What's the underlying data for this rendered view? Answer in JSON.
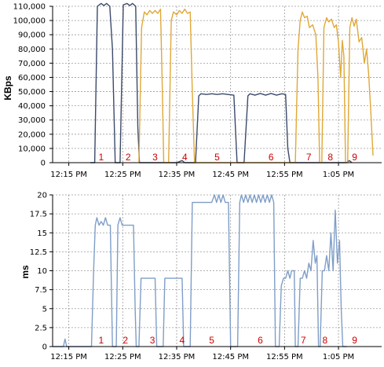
{
  "chart_data": [
    {
      "type": "line",
      "title": "",
      "xlabel": "",
      "ylabel": "KBps",
      "x_unit": "minutes after 12:00 PM",
      "xlim": [
        12,
        73
      ],
      "ylim": [
        0,
        110000
      ],
      "xticks": [
        "12:15 PM",
        "12:25 PM",
        "12:35 PM",
        "12:45 PM",
        "12:55 PM",
        "1:05 PM"
      ],
      "yticks": [
        "0",
        "10,000",
        "20,000",
        "30,000",
        "40,000",
        "50,000",
        "60,000",
        "70,000",
        "80,000",
        "90,000",
        "100,000",
        "110,000"
      ],
      "grid": true,
      "colors": {
        "grid": "#9a9a9a",
        "axis": "#000000",
        "label": "#cc0000"
      },
      "segment_labels": [
        {
          "text": "1",
          "x": 21.0
        },
        {
          "text": "2",
          "x": 26.0
        },
        {
          "text": "3",
          "x": 31.0
        },
        {
          "text": "4",
          "x": 36.5
        },
        {
          "text": "5",
          "x": 42.5
        },
        {
          "text": "6",
          "x": 52.5
        },
        {
          "text": "7",
          "x": 59.5
        },
        {
          "text": "8",
          "x": 63.5
        },
        {
          "text": "9",
          "x": 68.0
        }
      ],
      "series": [
        {
          "color": "#3b4a6b",
          "points": [
            [
              19.0,
              0
            ],
            [
              19.8,
              0
            ],
            [
              20.3,
              110000
            ],
            [
              21.0,
              112000
            ],
            [
              21.5,
              110500
            ],
            [
              22.0,
              112000
            ],
            [
              22.6,
              110000
            ],
            [
              23.1,
              80000
            ],
            [
              23.6,
              0
            ],
            [
              24.5,
              0
            ],
            [
              25.1,
              111000
            ],
            [
              25.8,
              112000
            ],
            [
              26.3,
              110500
            ],
            [
              26.8,
              112000
            ],
            [
              27.4,
              110000
            ],
            [
              27.8,
              25000
            ],
            [
              28.1,
              0
            ],
            [
              29.0,
              0
            ],
            [
              35.0,
              0
            ],
            [
              36.0,
              1500
            ],
            [
              36.5,
              0
            ],
            [
              38.5,
              0
            ],
            [
              39.1,
              47000
            ],
            [
              39.5,
              48500
            ],
            [
              40.5,
              48000
            ],
            [
              41.5,
              48500
            ],
            [
              42.5,
              48000
            ],
            [
              43.5,
              48500
            ],
            [
              44.5,
              48000
            ],
            [
              45.6,
              47500
            ],
            [
              46.2,
              0
            ],
            [
              47.5,
              0
            ],
            [
              48.2,
              47000
            ],
            [
              48.6,
              48500
            ],
            [
              49.5,
              47500
            ],
            [
              50.5,
              48700
            ],
            [
              51.5,
              47500
            ],
            [
              52.5,
              48700
            ],
            [
              53.5,
              47500
            ],
            [
              54.5,
              48500
            ],
            [
              55.2,
              48000
            ],
            [
              55.6,
              10000
            ],
            [
              56.0,
              0
            ],
            [
              57.5,
              0
            ],
            [
              66.5,
              0
            ],
            [
              67.0,
              1500
            ],
            [
              67.5,
              0
            ]
          ]
        },
        {
          "color": "#e0a838",
          "points": [
            [
              28.0,
              0
            ],
            [
              28.5,
              95000
            ],
            [
              29.0,
              106000
            ],
            [
              29.5,
              104000
            ],
            [
              30.0,
              107000
            ],
            [
              30.5,
              105000
            ],
            [
              31.0,
              107000
            ],
            [
              31.5,
              105000
            ],
            [
              32.0,
              108000
            ],
            [
              32.3,
              60000
            ],
            [
              32.6,
              0
            ],
            [
              33.5,
              0
            ],
            [
              34.0,
              100000
            ],
            [
              34.4,
              106000
            ],
            [
              35.0,
              104000
            ],
            [
              35.5,
              107000
            ],
            [
              36.0,
              105000
            ],
            [
              36.5,
              108000
            ],
            [
              37.0,
              105000
            ],
            [
              37.5,
              106000
            ],
            [
              37.9,
              50000
            ],
            [
              38.3,
              0
            ],
            [
              57.0,
              0
            ],
            [
              57.5,
              80000
            ],
            [
              57.9,
              100000
            ],
            [
              58.3,
              106000
            ],
            [
              58.7,
              102000
            ],
            [
              59.2,
              103000
            ],
            [
              59.6,
              95000
            ],
            [
              60.2,
              97000
            ],
            [
              60.8,
              90000
            ],
            [
              61.2,
              60000
            ],
            [
              61.5,
              0
            ],
            [
              61.9,
              0
            ],
            [
              62.3,
              95000
            ],
            [
              62.8,
              102000
            ],
            [
              63.2,
              99000
            ],
            [
              63.7,
              101000
            ],
            [
              64.2,
              95000
            ],
            [
              64.6,
              97000
            ],
            [
              65.0,
              85000
            ],
            [
              65.4,
              60000
            ],
            [
              65.7,
              86000
            ],
            [
              66.0,
              75000
            ],
            [
              66.3,
              0
            ],
            [
              66.7,
              0
            ],
            [
              67.1,
              95000
            ],
            [
              67.5,
              102000
            ],
            [
              67.9,
              96000
            ],
            [
              68.3,
              101000
            ],
            [
              68.8,
              85000
            ],
            [
              69.3,
              88000
            ],
            [
              69.8,
              70000
            ],
            [
              70.2,
              80000
            ],
            [
              70.6,
              62000
            ],
            [
              71.0,
              35000
            ],
            [
              71.4,
              5000
            ]
          ]
        }
      ]
    },
    {
      "type": "line",
      "title": "",
      "xlabel": "",
      "ylabel": "ms",
      "x_unit": "minutes after 12:00 PM",
      "xlim": [
        12,
        73
      ],
      "ylim": [
        0,
        20
      ],
      "xticks": [
        "12:15 PM",
        "12:25 PM",
        "12:35 PM",
        "12:45 PM",
        "12:55 PM",
        "1:05 PM"
      ],
      "yticks": [
        "0",
        "2.5",
        "5",
        "7.5",
        "10",
        "12.5",
        "15",
        "17.5",
        "20"
      ],
      "grid": true,
      "colors": {
        "grid": "#9a9a9a",
        "axis": "#000000",
        "label": "#cc0000"
      },
      "segment_labels": [
        {
          "text": "1",
          "x": 21.0
        },
        {
          "text": "2",
          "x": 25.5
        },
        {
          "text": "3",
          "x": 30.5
        },
        {
          "text": "4",
          "x": 36.0
        },
        {
          "text": "5",
          "x": 41.5
        },
        {
          "text": "6",
          "x": 50.5
        },
        {
          "text": "7",
          "x": 58.5
        },
        {
          "text": "8",
          "x": 62.5
        },
        {
          "text": "9",
          "x": 68.0
        }
      ],
      "series": [
        {
          "color": "#7f9ec8",
          "points": [
            [
              12.0,
              0
            ],
            [
              14.0,
              0
            ],
            [
              14.3,
              1.0
            ],
            [
              14.6,
              0
            ],
            [
              19.2,
              0
            ],
            [
              19.6,
              10
            ],
            [
              19.9,
              16
            ],
            [
              20.2,
              17
            ],
            [
              20.6,
              16
            ],
            [
              21.0,
              16.5
            ],
            [
              21.4,
              16
            ],
            [
              21.8,
              17
            ],
            [
              22.2,
              16
            ],
            [
              22.7,
              16
            ],
            [
              23.1,
              0
            ],
            [
              23.8,
              0
            ],
            [
              24.1,
              16
            ],
            [
              24.5,
              17
            ],
            [
              24.9,
              16
            ],
            [
              25.5,
              16
            ],
            [
              26.0,
              16
            ],
            [
              26.5,
              16
            ],
            [
              27.0,
              16
            ],
            [
              27.3,
              5
            ],
            [
              27.5,
              0
            ],
            [
              28.0,
              0
            ],
            [
              28.4,
              9
            ],
            [
              30.5,
              9
            ],
            [
              31.0,
              9
            ],
            [
              31.3,
              0
            ],
            [
              32.5,
              0
            ],
            [
              32.8,
              9
            ],
            [
              35.5,
              9
            ],
            [
              36.0,
              9
            ],
            [
              36.3,
              0
            ],
            [
              37.0,
              0
            ],
            [
              37.5,
              0
            ],
            [
              37.9,
              19
            ],
            [
              41.5,
              19
            ],
            [
              42.0,
              20
            ],
            [
              42.4,
              19
            ],
            [
              42.8,
              20
            ],
            [
              43.2,
              19
            ],
            [
              43.6,
              20
            ],
            [
              44.0,
              19
            ],
            [
              44.6,
              19
            ],
            [
              45.0,
              0
            ],
            [
              46.3,
              0
            ],
            [
              46.7,
              19
            ],
            [
              47.0,
              20
            ],
            [
              47.4,
              19
            ],
            [
              47.8,
              20
            ],
            [
              48.2,
              19
            ],
            [
              48.6,
              20
            ],
            [
              49.0,
              19
            ],
            [
              49.4,
              20
            ],
            [
              49.8,
              19
            ],
            [
              50.2,
              20
            ],
            [
              50.6,
              19
            ],
            [
              51.0,
              20
            ],
            [
              51.4,
              19
            ],
            [
              51.8,
              20
            ],
            [
              52.2,
              19
            ],
            [
              52.6,
              20
            ],
            [
              53.0,
              19
            ],
            [
              53.3,
              0
            ],
            [
              54.0,
              0
            ],
            [
              54.4,
              8
            ],
            [
              54.8,
              9
            ],
            [
              55.2,
              9
            ],
            [
              55.6,
              10
            ],
            [
              56.0,
              9
            ],
            [
              56.3,
              10
            ],
            [
              56.8,
              10
            ],
            [
              57.0,
              0
            ],
            [
              57.5,
              0
            ],
            [
              57.9,
              9
            ],
            [
              58.3,
              9
            ],
            [
              58.7,
              10
            ],
            [
              59.1,
              9
            ],
            [
              59.5,
              11
            ],
            [
              59.9,
              10
            ],
            [
              60.3,
              14
            ],
            [
              60.7,
              11
            ],
            [
              61.0,
              12
            ],
            [
              61.3,
              0
            ],
            [
              61.6,
              0
            ],
            [
              62.0,
              10
            ],
            [
              62.4,
              10
            ],
            [
              62.8,
              12
            ],
            [
              63.2,
              10
            ],
            [
              63.6,
              15
            ],
            [
              64.0,
              10
            ],
            [
              64.4,
              18
            ],
            [
              64.8,
              11
            ],
            [
              65.2,
              14
            ],
            [
              65.5,
              5
            ],
            [
              65.8,
              0
            ],
            [
              66.5,
              0
            ]
          ]
        }
      ]
    }
  ]
}
